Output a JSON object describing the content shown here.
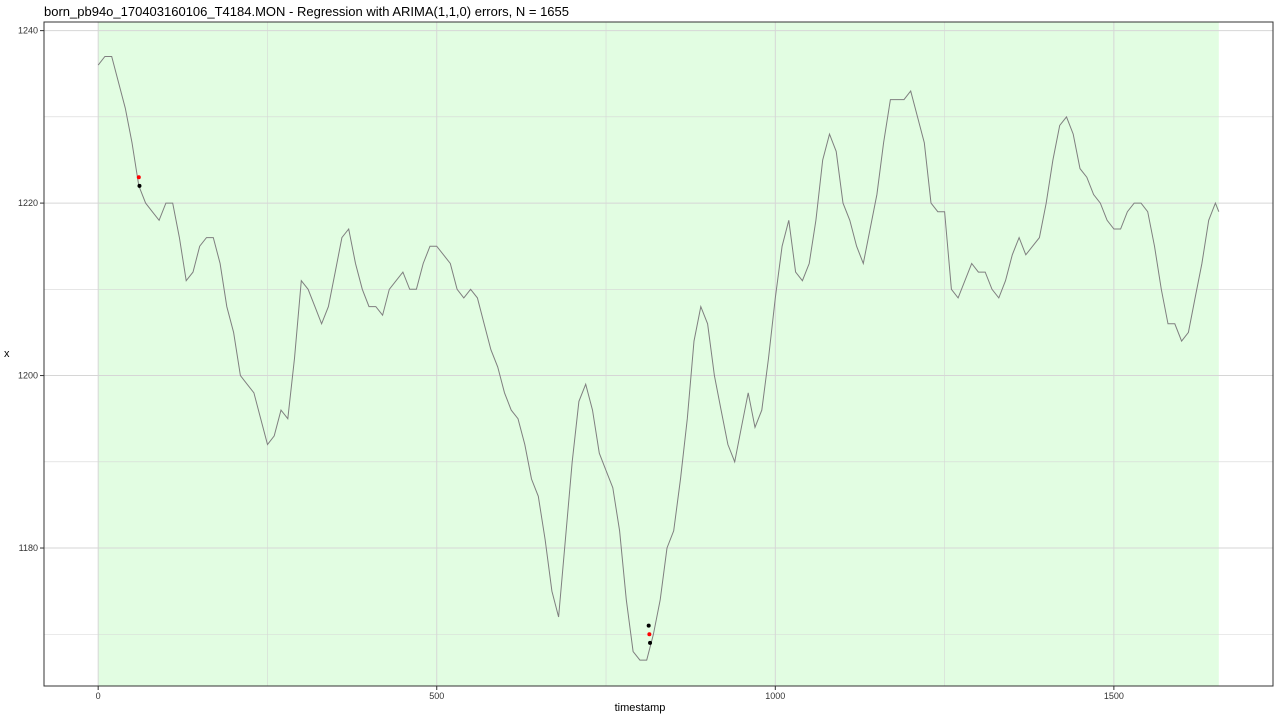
{
  "title": "born_pb94o_170403160106_T4184.MON - Regression with ARIMA(1,1,0) errors, N = 1655",
  "chart_data": {
    "type": "line",
    "xlabel": "timestamp",
    "ylabel": "x",
    "xlim": [
      -80,
      1735
    ],
    "ylim": [
      1164,
      1241
    ],
    "x_ticks": [
      0,
      500,
      1000,
      1500
    ],
    "y_ticks": [
      1180,
      1200,
      1220,
      1240
    ],
    "grid": true,
    "shaded_region": {
      "x_start": 0,
      "x_end": 1655,
      "color": "#e2fde2"
    },
    "colors": {
      "line": "#7f7f7f",
      "marker_black": "#000000",
      "marker_red": "#ff0000",
      "grid": "#d6d6d6"
    },
    "series": [
      {
        "x": [
          0,
          10,
          20,
          30,
          40,
          50,
          60,
          70,
          80,
          90,
          100,
          110,
          120,
          130,
          140,
          150,
          160,
          170,
          180,
          190,
          200,
          210,
          220,
          230,
          240,
          250,
          260,
          270,
          280,
          290,
          300,
          310,
          320,
          330,
          340,
          350,
          360,
          370,
          380,
          390,
          400,
          410,
          420,
          430,
          440,
          450,
          460,
          470,
          480,
          490,
          500,
          510,
          520,
          530,
          540,
          550,
          560,
          570,
          580,
          590,
          600,
          610,
          620,
          630,
          640,
          650,
          660,
          670,
          680,
          690,
          700,
          710,
          720,
          730,
          740,
          750,
          760,
          770,
          780,
          790,
          800,
          810,
          820,
          830,
          840,
          850,
          860,
          870,
          880,
          890,
          900,
          910,
          920,
          930,
          940,
          950,
          960,
          970,
          980,
          990,
          1000,
          1010,
          1020,
          1030,
          1040,
          1050,
          1060,
          1070,
          1080,
          1090,
          1100,
          1110,
          1120,
          1130,
          1140,
          1150,
          1160,
          1170,
          1180,
          1190,
          1200,
          1210,
          1220,
          1230,
          1240,
          1250,
          1260,
          1270,
          1280,
          1290,
          1300,
          1310,
          1320,
          1330,
          1340,
          1350,
          1360,
          1370,
          1380,
          1390,
          1400,
          1410,
          1420,
          1430,
          1440,
          1450,
          1460,
          1470,
          1480,
          1490,
          1500,
          1510,
          1520,
          1530,
          1540,
          1550,
          1560,
          1570,
          1580,
          1590,
          1600,
          1610,
          1620,
          1630,
          1640,
          1650,
          1655
        ],
        "y": [
          1236,
          1237,
          1237,
          1234,
          1231,
          1227,
          1222,
          1220,
          1219,
          1218,
          1220,
          1220,
          1216,
          1211,
          1212,
          1215,
          1216,
          1216,
          1213,
          1208,
          1205,
          1200,
          1199,
          1198,
          1195,
          1192,
          1193,
          1196,
          1195,
          1202,
          1211,
          1210,
          1208,
          1206,
          1208,
          1212,
          1216,
          1217,
          1213,
          1210,
          1208,
          1208,
          1207,
          1210,
          1211,
          1212,
          1210,
          1210,
          1213,
          1215,
          1215,
          1214,
          1213,
          1210,
          1209,
          1210,
          1209,
          1206,
          1203,
          1201,
          1198,
          1196,
          1195,
          1192,
          1188,
          1186,
          1181,
          1175,
          1172,
          1181,
          1190,
          1197,
          1199,
          1196,
          1191,
          1189,
          1187,
          1182,
          1174,
          1168,
          1167,
          1167,
          1170,
          1174,
          1180,
          1182,
          1188,
          1195,
          1204,
          1208,
          1206,
          1200,
          1196,
          1192,
          1190,
          1194,
          1198,
          1194,
          1196,
          1202,
          1209,
          1215,
          1218,
          1212,
          1211,
          1213,
          1218,
          1225,
          1228,
          1226,
          1220,
          1218,
          1215,
          1213,
          1217,
          1221,
          1227,
          1232,
          1232,
          1232,
          1233,
          1230,
          1227,
          1220,
          1219,
          1219,
          1210,
          1209,
          1211,
          1213,
          1212,
          1212,
          1210,
          1209,
          1211,
          1214,
          1216,
          1214,
          1215,
          1216,
          1220,
          1225,
          1229,
          1230,
          1228,
          1224,
          1223,
          1221,
          1220,
          1218,
          1217,
          1217,
          1219,
          1220,
          1220,
          1219,
          1215,
          1210,
          1206,
          1206,
          1204,
          1205,
          1209,
          1213,
          1218,
          1220,
          1219
        ]
      }
    ],
    "markers": [
      {
        "x": 60,
        "y": 1223,
        "color": "red"
      },
      {
        "x": 61,
        "y": 1222,
        "color": "black"
      },
      {
        "x": 813,
        "y": 1171,
        "color": "black"
      },
      {
        "x": 814,
        "y": 1170,
        "color": "red"
      },
      {
        "x": 815,
        "y": 1169,
        "color": "black"
      }
    ]
  }
}
